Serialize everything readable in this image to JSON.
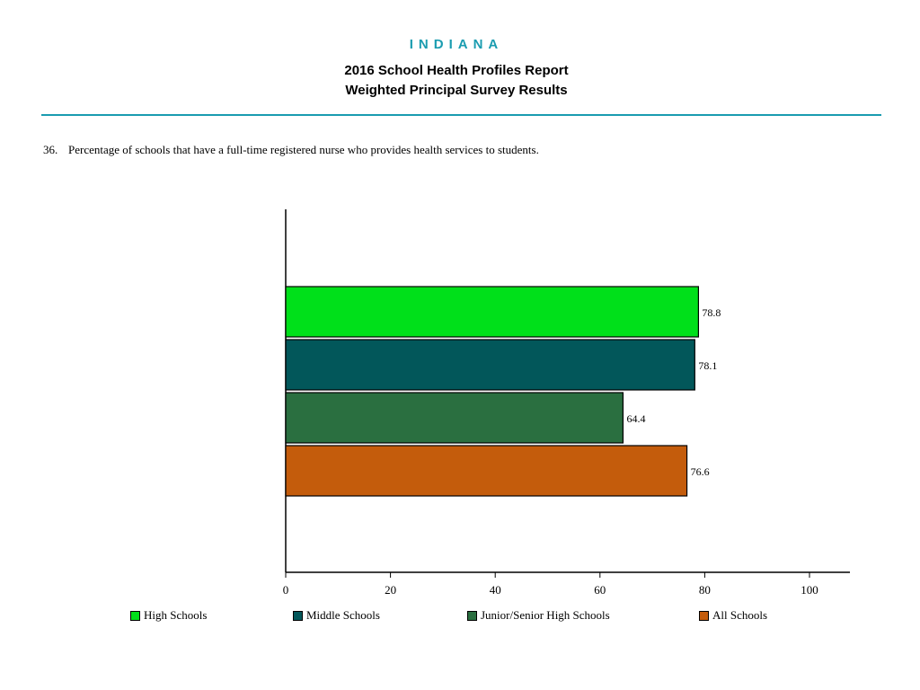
{
  "header": {
    "state": "INDIANA",
    "title_line1": "2016 School Health Profiles Report",
    "title_line2": "Weighted Principal Survey Results"
  },
  "question": {
    "number": "36.",
    "text": "Percentage of schools that have a full-time registered nurse who provides health services to students."
  },
  "colors": {
    "accent": "#1a9cb0"
  },
  "chart_data": {
    "type": "bar",
    "orientation": "horizontal",
    "categories": [
      "High Schools",
      "Middle Schools",
      "Junior/Senior High Schools",
      "All Schools"
    ],
    "values": [
      78.8,
      78.1,
      64.4,
      76.6
    ],
    "labels": [
      "78.8",
      "78.1",
      "64.4",
      "76.6"
    ],
    "colors": [
      "#00e01a",
      "#02575a",
      "#2a6f40",
      "#c45c0c"
    ],
    "xlim": [
      0,
      108
    ],
    "xticks": [
      0,
      20,
      40,
      60,
      80,
      100
    ],
    "legend_position": "bottom",
    "grid": false
  }
}
